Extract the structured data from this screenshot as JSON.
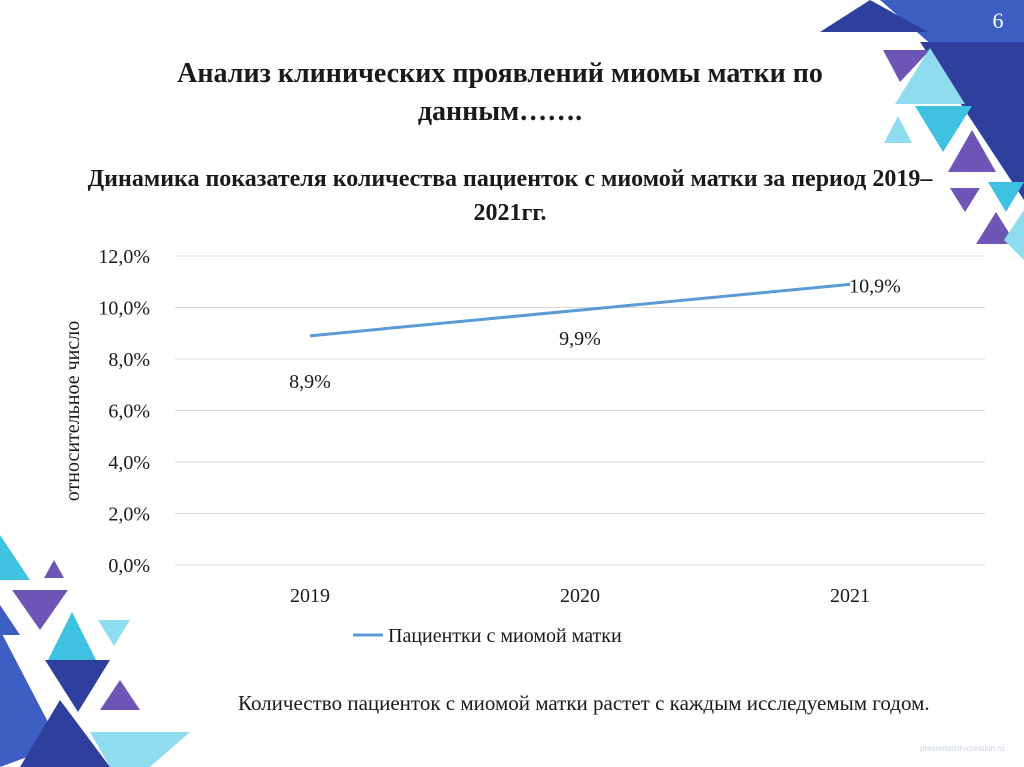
{
  "slide": {
    "number": "6",
    "title": "Анализ клинических проявлений миомы матки по данным…….",
    "caption": "Количество пациенток с миомой матки растет с каждым исследуемым годом.",
    "watermark": "presentation-creation.ru"
  },
  "colors": {
    "line": "#5b9bd5",
    "grid": "#d9d9d9",
    "deco_dark_blue": "#2e3f9e",
    "deco_blue": "#3d5fc4",
    "deco_cyan": "#3fc1e0",
    "deco_light_cyan": "#8fdcef",
    "deco_purple": "#6c55b5"
  },
  "chart_data": {
    "type": "line",
    "title": "Динамика показателя количества пациенток с миомой матки за период 2019–2021гг.",
    "xlabel": "",
    "ylabel": "относительное число",
    "categories": [
      "2019",
      "2020",
      "2021"
    ],
    "series": [
      {
        "name": "Пациентки с миомой матки",
        "values": [
          8.9,
          9.9,
          10.9
        ],
        "data_labels": [
          "8,9%",
          "9,9%",
          "10,9%"
        ]
      }
    ],
    "ylim": [
      0,
      12
    ],
    "y_ticks": [
      0,
      2,
      4,
      6,
      8,
      10,
      12
    ],
    "y_tick_labels": [
      "0,0%",
      "2,0%",
      "4,0%",
      "6,0%",
      "8,0%",
      "10,0%",
      "12,0%"
    ],
    "grid": true,
    "legend": "bottom"
  }
}
